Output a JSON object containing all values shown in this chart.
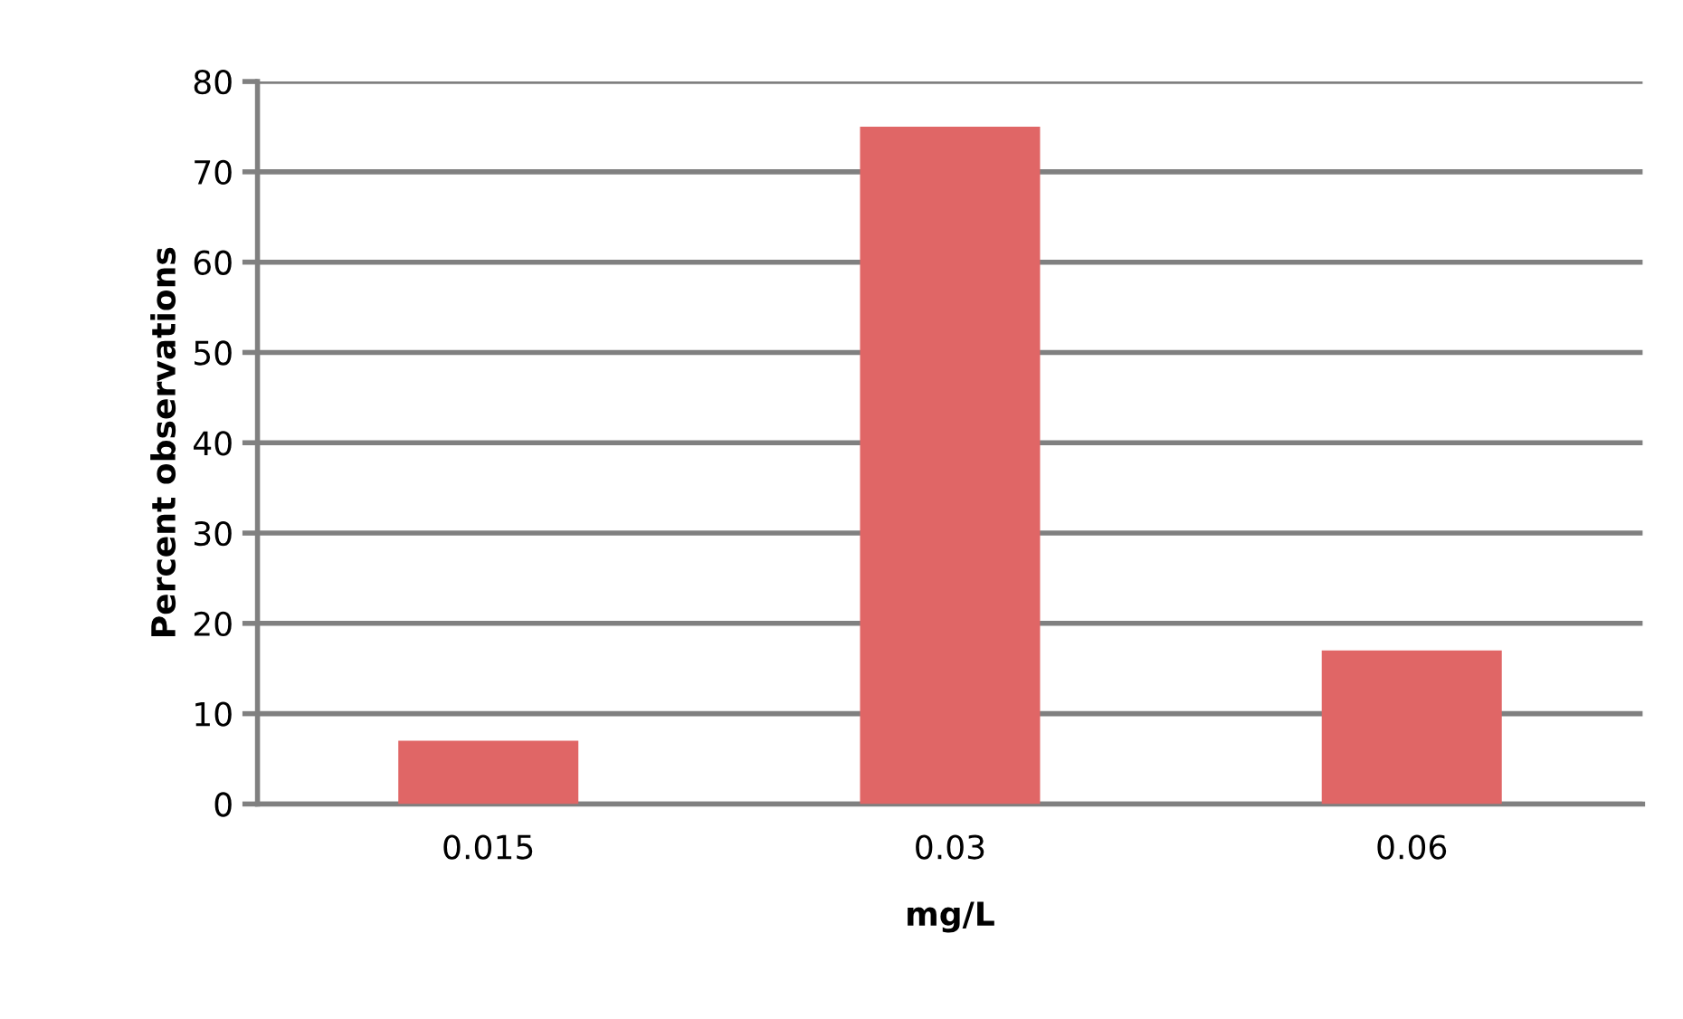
{
  "chart_data": {
    "type": "bar",
    "categories": [
      "0.015",
      "0.03",
      "0.06"
    ],
    "values": [
      7,
      75,
      17
    ],
    "color": "#e06666",
    "xlabel": "mg/L",
    "ylabel": "Percent observations",
    "ylim": [
      0,
      80
    ],
    "yticks": [
      0,
      10,
      20,
      30,
      40,
      50,
      60,
      70,
      80
    ],
    "grid": "y"
  }
}
